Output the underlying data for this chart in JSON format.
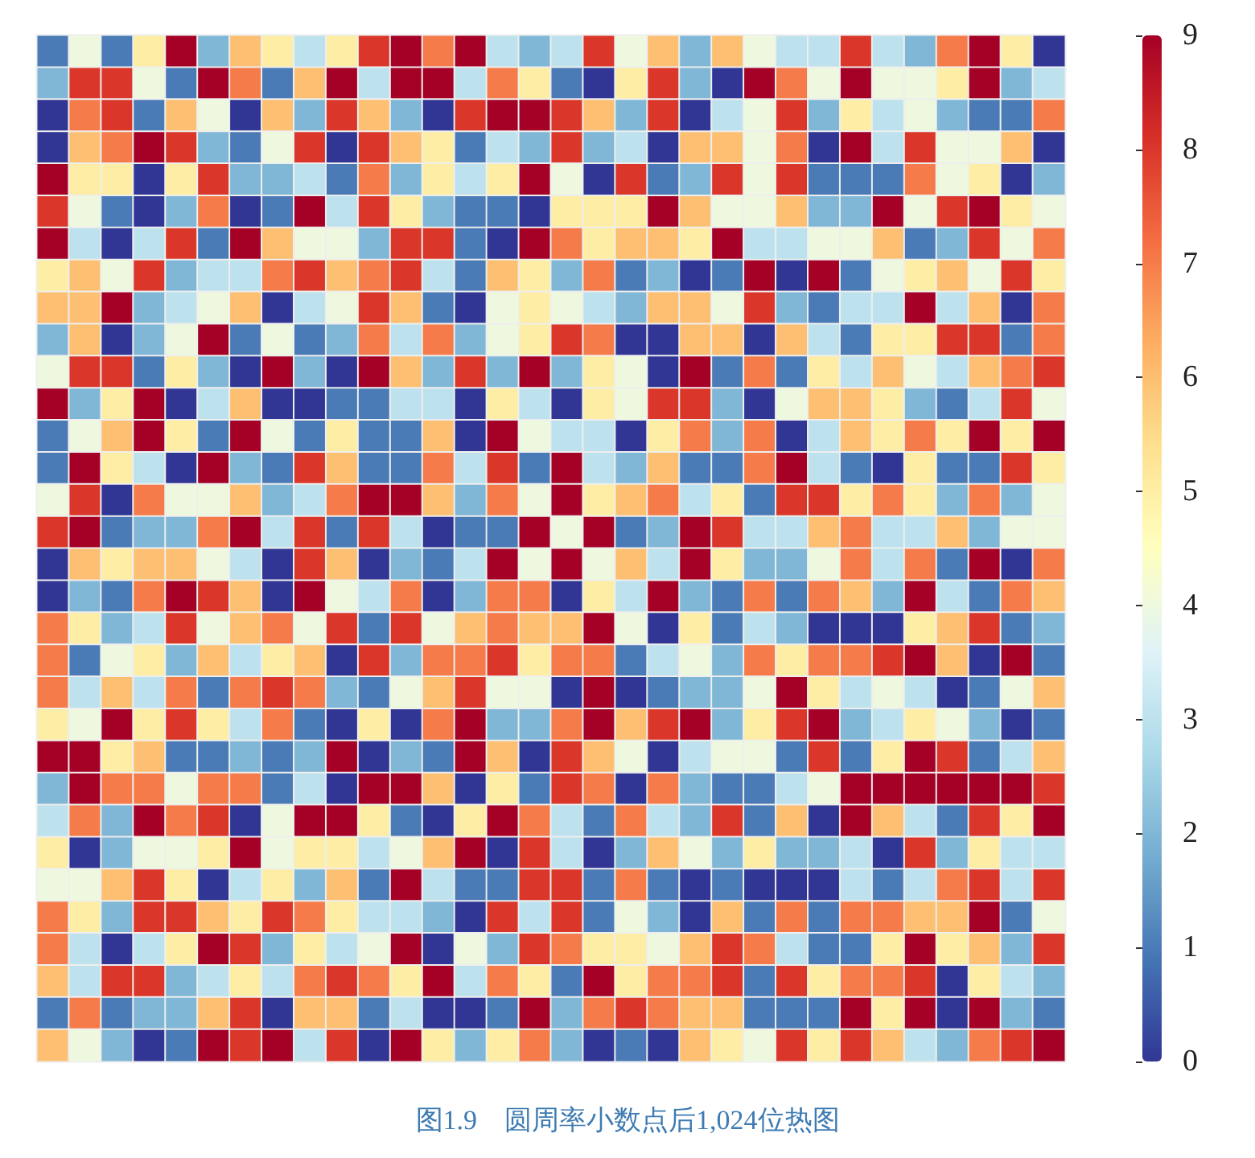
{
  "chart_data": {
    "type": "heatmap",
    "categories": [
      null,
      null,
      null,
      null,
      null,
      null,
      null,
      null,
      null,
      null,
      null,
      null,
      null,
      null,
      null,
      null,
      null,
      null,
      null,
      null,
      null,
      null,
      null,
      null,
      null,
      null,
      null,
      null,
      null,
      null,
      null,
      null
    ],
    "y_categories": [
      null,
      null,
      null,
      null,
      null,
      null,
      null,
      null,
      null,
      null,
      null,
      null,
      null,
      null,
      null,
      null,
      null,
      null,
      null,
      null,
      null,
      null,
      null,
      null,
      null,
      null,
      null,
      null,
      null,
      null,
      null,
      null
    ],
    "cells": [
      [
        1,
        4,
        1,
        5,
        9,
        2,
        6,
        5,
        3,
        5,
        8,
        9,
        7,
        9,
        3,
        2,
        3,
        8,
        4,
        6,
        2,
        6,
        4,
        3,
        3,
        8,
        3,
        2,
        7,
        9,
        5,
        0
      ],
      [
        2,
        8,
        8,
        4,
        1,
        9,
        7,
        1,
        6,
        9,
        3,
        9,
        9,
        3,
        7,
        5,
        1,
        0,
        5,
        8,
        2,
        0,
        9,
        7,
        4,
        9,
        4,
        4,
        5,
        9,
        2,
        3
      ],
      [
        0,
        7,
        8,
        1,
        6,
        4,
        0,
        6,
        2,
        8,
        6,
        2,
        0,
        8,
        9,
        9,
        8,
        6,
        2,
        8,
        0,
        3,
        4,
        8,
        2,
        5,
        3,
        4,
        2,
        1,
        1,
        7
      ],
      [
        0,
        6,
        7,
        9,
        8,
        2,
        1,
        4,
        8,
        0,
        8,
        6,
        5,
        1,
        3,
        2,
        8,
        2,
        3,
        0,
        6,
        6,
        4,
        7,
        0,
        9,
        3,
        8,
        4,
        4,
        6,
        0
      ],
      [
        9,
        5,
        5,
        0,
        5,
        8,
        2,
        2,
        3,
        1,
        7,
        2,
        5,
        3,
        5,
        9,
        4,
        0,
        8,
        1,
        2,
        8,
        4,
        8,
        1,
        1,
        1,
        7,
        4,
        5,
        0,
        2
      ],
      [
        8,
        4,
        1,
        0,
        2,
        7,
        0,
        1,
        9,
        3,
        8,
        5,
        2,
        1,
        1,
        0,
        5,
        5,
        5,
        9,
        6,
        4,
        4,
        6,
        2,
        2,
        9,
        4,
        8,
        9,
        5,
        4
      ],
      [
        9,
        3,
        0,
        3,
        8,
        1,
        9,
        6,
        4,
        4,
        2,
        8,
        8,
        1,
        0,
        9,
        7,
        5,
        6,
        6,
        5,
        9,
        3,
        3,
        4,
        4,
        6,
        1,
        2,
        8,
        4,
        7
      ],
      [
        5,
        6,
        4,
        8,
        2,
        3,
        3,
        7,
        8,
        6,
        7,
        8,
        3,
        1,
        6,
        5,
        2,
        7,
        1,
        2,
        0,
        1,
        9,
        0,
        9,
        1,
        4,
        5,
        6,
        4,
        8,
        5
      ],
      [
        6,
        6,
        9,
        2,
        3,
        4,
        6,
        0,
        3,
        4,
        8,
        6,
        1,
        0,
        4,
        5,
        4,
        3,
        2,
        6,
        6,
        4,
        8,
        2,
        1,
        3,
        3,
        9,
        3,
        6,
        0,
        7
      ],
      [
        2,
        6,
        0,
        2,
        4,
        9,
        1,
        4,
        1,
        2,
        7,
        3,
        7,
        2,
        4,
        5,
        8,
        7,
        0,
        0,
        6,
        6,
        0,
        6,
        3,
        1,
        5,
        5,
        8,
        8,
        1,
        7
      ],
      [
        4,
        8,
        8,
        1,
        5,
        2,
        0,
        9,
        2,
        0,
        9,
        6,
        2,
        8,
        2,
        9,
        2,
        5,
        4,
        0,
        9,
        1,
        7,
        1,
        5,
        3,
        6,
        4,
        3,
        6,
        7,
        8
      ],
      [
        9,
        2,
        5,
        9,
        0,
        3,
        6,
        0,
        0,
        1,
        1,
        3,
        3,
        0,
        5,
        3,
        0,
        5,
        4,
        8,
        8,
        2,
        0,
        4,
        6,
        6,
        5,
        2,
        1,
        3,
        8,
        4
      ],
      [
        1,
        4,
        6,
        9,
        5,
        1,
        9,
        4,
        1,
        5,
        1,
        1,
        6,
        0,
        9,
        4,
        3,
        3,
        0,
        5,
        7,
        2,
        7,
        0,
        3,
        6,
        5,
        7,
        5,
        9,
        5,
        9
      ],
      [
        1,
        9,
        5,
        3,
        0,
        9,
        2,
        1,
        8,
        6,
        1,
        1,
        7,
        3,
        8,
        1,
        9,
        3,
        2,
        6,
        1,
        1,
        7,
        9,
        3,
        1,
        0,
        5,
        1,
        1,
        8,
        5
      ],
      [
        4,
        8,
        0,
        7,
        4,
        4,
        6,
        2,
        3,
        7,
        9,
        9,
        6,
        2,
        7,
        4,
        9,
        5,
        6,
        7,
        3,
        5,
        1,
        8,
        8,
        5,
        7,
        5,
        2,
        7,
        2,
        4
      ],
      [
        8,
        9,
        1,
        2,
        2,
        7,
        9,
        3,
        8,
        1,
        8,
        3,
        0,
        1,
        1,
        9,
        4,
        9,
        1,
        2,
        9,
        8,
        3,
        3,
        6,
        7,
        3,
        3,
        6,
        2,
        4,
        4
      ],
      [
        0,
        6,
        5,
        6,
        6,
        4,
        3,
        0,
        8,
        6,
        0,
        2,
        1,
        3,
        9,
        4,
        9,
        4,
        6,
        3,
        9,
        5,
        2,
        2,
        4,
        7,
        3,
        7,
        1,
        9,
        0,
        7
      ],
      [
        0,
        2,
        1,
        7,
        9,
        8,
        6,
        0,
        9,
        4,
        3,
        7,
        0,
        2,
        7,
        7,
        0,
        5,
        3,
        9,
        2,
        1,
        7,
        1,
        7,
        6,
        2,
        9,
        3,
        1,
        7,
        6
      ],
      [
        7,
        5,
        2,
        3,
        8,
        4,
        6,
        7,
        4,
        8,
        1,
        8,
        4,
        6,
        7,
        6,
        6,
        9,
        4,
        0,
        5,
        1,
        3,
        2,
        0,
        0,
        0,
        5,
        6,
        8,
        1,
        2
      ],
      [
        7,
        1,
        4,
        5,
        2,
        6,
        3,
        5,
        6,
        0,
        8,
        2,
        7,
        7,
        8,
        5,
        7,
        7,
        1,
        3,
        4,
        2,
        7,
        5,
        7,
        7,
        8,
        9,
        6,
        0,
        9,
        1
      ],
      [
        7,
        3,
        6,
        3,
        7,
        1,
        7,
        8,
        7,
        2,
        1,
        4,
        6,
        8,
        4,
        4,
        0,
        9,
        0,
        1,
        2,
        2,
        4,
        9,
        5,
        3,
        4,
        3,
        0,
        1,
        4,
        6
      ],
      [
        5,
        4,
        9,
        5,
        8,
        5,
        3,
        7,
        1,
        0,
        5,
        0,
        7,
        9,
        2,
        2,
        7,
        9,
        6,
        8,
        9,
        2,
        5,
        8,
        9,
        2,
        3,
        5,
        4,
        2,
        0,
        1
      ],
      [
        9,
        9,
        5,
        6,
        1,
        1,
        2,
        1,
        2,
        9,
        0,
        2,
        1,
        9,
        6,
        0,
        8,
        6,
        4,
        0,
        3,
        4,
        4,
        1,
        8,
        1,
        5,
        9,
        8,
        1,
        3,
        6
      ],
      [
        2,
        9,
        7,
        7,
        4,
        7,
        7,
        1,
        3,
        0,
        9,
        9,
        6,
        0,
        5,
        1,
        8,
        7,
        0,
        7,
        2,
        1,
        1,
        3,
        4,
        9,
        9,
        9,
        9,
        9,
        9,
        8
      ],
      [
        3,
        7,
        2,
        9,
        7,
        8,
        0,
        4,
        9,
        9,
        5,
        1,
        0,
        5,
        9,
        7,
        3,
        1,
        7,
        3,
        2,
        8,
        1,
        6,
        0,
        9,
        6,
        3,
        1,
        8,
        5,
        9
      ],
      [
        5,
        0,
        2,
        4,
        4,
        5,
        9,
        4,
        5,
        5,
        3,
        4,
        6,
        9,
        0,
        8,
        3,
        0,
        2,
        6,
        4,
        2,
        5,
        2,
        2,
        3,
        0,
        8,
        2,
        5,
        3,
        3
      ],
      [
        4,
        4,
        6,
        8,
        5,
        0,
        3,
        5,
        2,
        6,
        1,
        9,
        3,
        1,
        1,
        8,
        8,
        1,
        7,
        1,
        0,
        1,
        0,
        0,
        0,
        3,
        1,
        3,
        7,
        8,
        3,
        8
      ],
      [
        7,
        5,
        2,
        8,
        8,
        6,
        5,
        8,
        7,
        5,
        3,
        3,
        2,
        0,
        8,
        3,
        8,
        1,
        4,
        2,
        0,
        6,
        1,
        7,
        1,
        7,
        7,
        6,
        6,
        9,
        1,
        4
      ],
      [
        7,
        3,
        0,
        3,
        5,
        9,
        8,
        2,
        5,
        3,
        4,
        9,
        0,
        4,
        2,
        8,
        7,
        5,
        5,
        4,
        6,
        8,
        7,
        3,
        1,
        1,
        5,
        9,
        5,
        6,
        2,
        8
      ],
      [
        6,
        3,
        8,
        8,
        2,
        3,
        5,
        3,
        7,
        8,
        7,
        5,
        9,
        3,
        7,
        5,
        1,
        9,
        5,
        7,
        7,
        8,
        1,
        8,
        5,
        7,
        7,
        8,
        0,
        5,
        3,
        2
      ],
      [
        1,
        7,
        1,
        2,
        2,
        6,
        8,
        0,
        6,
        6,
        1,
        3,
        0,
        0,
        1,
        9,
        2,
        7,
        8,
        7,
        6,
        6,
        1,
        1,
        1,
        9,
        5,
        9,
        0,
        9,
        2,
        1
      ],
      [
        6,
        4,
        2,
        0,
        1,
        9,
        8,
        9,
        3,
        8,
        0,
        9,
        5,
        2,
        5,
        7,
        2,
        0,
        1,
        0,
        6,
        5,
        4,
        8,
        5,
        8,
        6,
        3,
        2,
        7,
        8,
        9
      ]
    ],
    "clim": [
      0,
      9
    ],
    "cticks": [
      0,
      1,
      2,
      3,
      4,
      5,
      6,
      7,
      8,
      9
    ],
    "annotations": [
      "图1.9　圆周率小数点后1,024位热图"
    ]
  }
}
